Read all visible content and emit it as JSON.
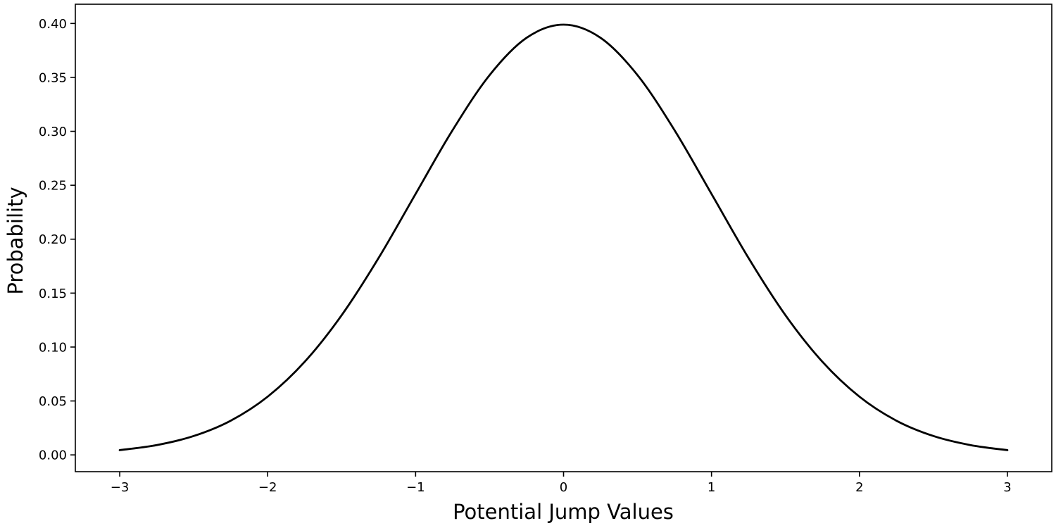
{
  "chart_data": {
    "type": "line",
    "xlabel": "Potential Jump Values",
    "ylabel": "Probability",
    "xlim": [
      -3.3,
      3.3
    ],
    "ylim": [
      -0.01556,
      0.41784
    ],
    "x_ticks": [
      -3,
      -2,
      -1,
      0,
      1,
      2,
      3
    ],
    "x_tick_labels": [
      "−3",
      "−2",
      "−1",
      "0",
      "1",
      "2",
      "3"
    ],
    "y_ticks": [
      0.0,
      0.05,
      0.1,
      0.15,
      0.2,
      0.25,
      0.3,
      0.35,
      0.4
    ],
    "y_tick_labels": [
      "0.00",
      "0.05",
      "0.10",
      "0.15",
      "0.20",
      "0.25",
      "0.30",
      "0.35",
      "0.40"
    ],
    "grid": false,
    "series": [
      {
        "color": "#000000",
        "x": [
          -3.0,
          -2.75,
          -2.5,
          -2.25,
          -2.0,
          -1.75,
          -1.5,
          -1.25,
          -1.0,
          -0.75,
          -0.5,
          -0.25,
          0.0,
          0.25,
          0.5,
          0.75,
          1.0,
          1.25,
          1.5,
          1.75,
          2.0,
          2.25,
          2.5,
          2.75,
          3.0
        ],
        "values": [
          0.0044,
          0.0091,
          0.0175,
          0.0317,
          0.054,
          0.0863,
          0.1295,
          0.1826,
          0.242,
          0.3011,
          0.3521,
          0.3867,
          0.3989,
          0.3867,
          0.3521,
          0.3011,
          0.242,
          0.1826,
          0.1295,
          0.0863,
          0.054,
          0.0317,
          0.0175,
          0.0091,
          0.0044
        ]
      }
    ]
  }
}
